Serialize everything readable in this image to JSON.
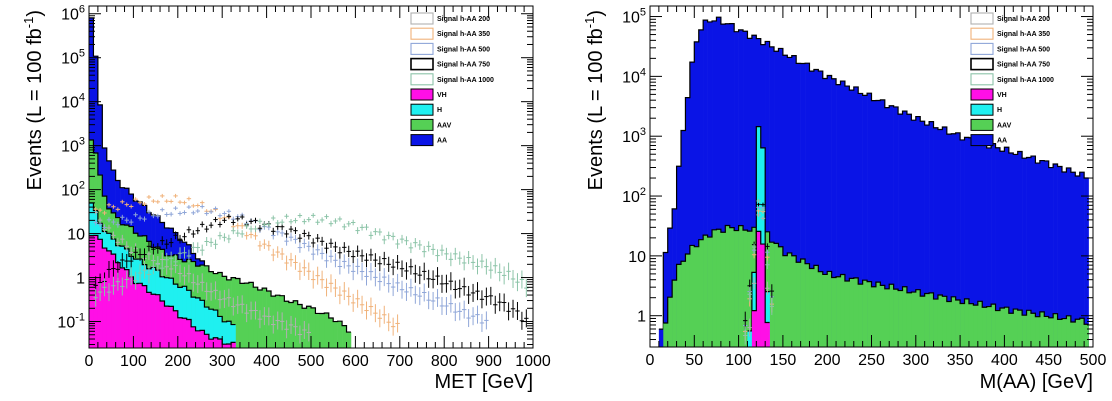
{
  "colors": {
    "AA": "#0a14e6",
    "AAV": "#55d055",
    "H": "#1ff0f0",
    "VH": "#ff0fe6",
    "sig200": "#b0b0b0",
    "sig350": "#f0b27a",
    "sig500": "#8fa6d8",
    "sig750": "#000000",
    "sig1000": "#8cc4a8"
  },
  "chart_data": [
    {
      "type": "histogram",
      "stacked_backgrounds": true,
      "xlabel": "MET [GeV]",
      "ylabel": "Events (L = 100 fb",
      "ylabel_sup": "-1",
      "ylabel_tail": ")",
      "xlim": [
        0,
        1000
      ],
      "ylim": [
        0.025,
        1500000
      ],
      "log_y": true,
      "bin_width": 10,
      "x_ticks": [
        "0",
        "100",
        "200",
        "300",
        "400",
        "500",
        "600",
        "700",
        "800",
        "900",
        "1000"
      ],
      "y_ticks": [
        {
          "base": "10",
          "exp": "-1"
        },
        {
          "base": "1",
          "exp": ""
        },
        {
          "base": "10",
          "exp": ""
        },
        {
          "base": "10",
          "exp": "2"
        },
        {
          "base": "10",
          "exp": "3"
        },
        {
          "base": "10",
          "exp": "4"
        },
        {
          "base": "10",
          "exp": "5"
        },
        {
          "base": "10",
          "exp": "6"
        }
      ],
      "legend_position": "top-right",
      "legend": [
        {
          "label": "Signal h-AA 200",
          "style": "line",
          "color_key": "sig200"
        },
        {
          "label": "Signal h-AA 350",
          "style": "line",
          "color_key": "sig350"
        },
        {
          "label": "Signal h-AA 500",
          "style": "line",
          "color_key": "sig500"
        },
        {
          "label": "Signal h-AA 750",
          "style": "line",
          "color_key": "sig750"
        },
        {
          "label": "Signal h-AA 1000",
          "style": "line",
          "color_key": "sig1000"
        },
        {
          "label": "VH",
          "style": "fill",
          "color_key": "VH"
        },
        {
          "label": "H",
          "style": "fill",
          "color_key": "H"
        },
        {
          "label": "AAV",
          "style": "fill",
          "color_key": "AAV"
        },
        {
          "label": "AA",
          "style": "fill",
          "color_key": "AA"
        }
      ],
      "stack_totals": {
        "VH": {
          "x": [
            5,
            25,
            50,
            75,
            100,
            125,
            150,
            175,
            200,
            225,
            250,
            275,
            300,
            325
          ],
          "y": [
            10,
            7,
            3.5,
            1.8,
            0.9,
            0.6,
            0.4,
            0.25,
            0.15,
            0.1,
            0.06,
            0.045,
            0.035,
            0.03
          ]
        },
        "H": {
          "x": [
            5,
            15,
            30,
            50,
            75,
            100,
            125,
            150,
            175,
            200,
            225,
            250,
            275,
            300,
            325
          ],
          "y": [
            50,
            30,
            14,
            8,
            5,
            3,
            2,
            1.5,
            1,
            0.7,
            0.5,
            0.3,
            0.2,
            0.12,
            0.08
          ]
        },
        "AAV": {
          "x": [
            5,
            15,
            30,
            50,
            75,
            100,
            125,
            150,
            175,
            200,
            250,
            300,
            350,
            400,
            450,
            500,
            550,
            590
          ],
          "y": [
            1500,
            700,
            100,
            30,
            18,
            12,
            8,
            5,
            3.5,
            2.8,
            2,
            1.1,
            0.8,
            0.5,
            0.3,
            0.2,
            0.12,
            0.06
          ]
        },
        "AA": {
          "x": [
            5,
            15,
            25,
            35,
            50,
            75,
            100,
            125,
            150,
            175,
            200,
            225,
            250,
            275,
            300
          ],
          "y": [
            900000,
            100000,
            8000,
            1000,
            300,
            120,
            70,
            40,
            25,
            15,
            9,
            5,
            2.5,
            1.2,
            0.6
          ]
        }
      },
      "signals": [
        {
          "key": "sig200",
          "x": [
            10,
            50,
            100,
            150,
            200,
            250,
            300,
            350,
            400,
            450,
            500
          ],
          "y": [
            30,
            10,
            4,
            2.5,
            1.5,
            0.7,
            0.35,
            0.2,
            0.12,
            0.08,
            0.05
          ]
        },
        {
          "key": "sig350",
          "x": [
            10,
            50,
            100,
            150,
            200,
            250,
            300,
            350,
            400,
            450,
            500,
            550,
            600,
            650,
            700
          ],
          "y": [
            30,
            40,
            50,
            60,
            60,
            45,
            25,
            12,
            5,
            2.5,
            1.2,
            0.6,
            0.3,
            0.15,
            0.07
          ]
        },
        {
          "key": "sig500",
          "x": [
            10,
            50,
            100,
            150,
            200,
            250,
            300,
            350,
            400,
            450,
            500,
            550,
            600,
            650,
            700,
            750,
            800,
            850,
            900
          ],
          "y": [
            15,
            18,
            22,
            28,
            32,
            35,
            30,
            22,
            13,
            8,
            4.5,
            2.5,
            1.6,
            1,
            0.6,
            0.4,
            0.25,
            0.15,
            0.1
          ]
        },
        {
          "key": "sig750",
          "x": [
            10,
            50,
            100,
            150,
            200,
            250,
            300,
            330,
            350,
            400,
            450,
            500,
            550,
            600,
            650,
            700,
            750,
            800,
            850,
            900,
            950,
            990
          ],
          "y": [
            0.5,
            1.5,
            3,
            5,
            8,
            13,
            20,
            22,
            20,
            15,
            12,
            8,
            5,
            3.5,
            2.5,
            1.8,
            1.2,
            0.8,
            0.5,
            0.35,
            0.2,
            0.1
          ]
        },
        {
          "key": "sig1000",
          "x": [
            10,
            100,
            200,
            300,
            400,
            450,
            500,
            550,
            600,
            650,
            700,
            750,
            800,
            850,
            900,
            950,
            990
          ],
          "y": [
            0.4,
            1,
            3,
            8,
            18,
            21,
            22,
            20,
            15,
            10,
            7,
            5,
            3.5,
            2.5,
            1.8,
            1.1,
            0.6
          ]
        }
      ]
    },
    {
      "type": "histogram",
      "stacked_backgrounds": true,
      "xlabel": "M(AA) [GeV]",
      "ylabel": "Events (L = 100 fb",
      "ylabel_sup": "-1",
      "ylabel_tail": ")",
      "xlim": [
        0,
        500
      ],
      "ylim": [
        0.3,
        150000
      ],
      "log_y": true,
      "bin_width": 5,
      "x_ticks": [
        "0",
        "50",
        "100",
        "150",
        "200",
        "250",
        "300",
        "350",
        "400",
        "450",
        "500"
      ],
      "y_ticks": [
        {
          "base": "1",
          "exp": ""
        },
        {
          "base": "10",
          "exp": ""
        },
        {
          "base": "10",
          "exp": "2"
        },
        {
          "base": "10",
          "exp": "3"
        },
        {
          "base": "10",
          "exp": "4"
        },
        {
          "base": "10",
          "exp": "5"
        }
      ],
      "legend_position": "top-right",
      "legend": [
        {
          "label": "Signal h-AA 200",
          "style": "line",
          "color_key": "sig200"
        },
        {
          "label": "Signal h-AA 350",
          "style": "line",
          "color_key": "sig350"
        },
        {
          "label": "Signal h-AA 500",
          "style": "line",
          "color_key": "sig500"
        },
        {
          "label": "Signal h-AA 750",
          "style": "line",
          "color_key": "sig750"
        },
        {
          "label": "Signal h-AA 1000",
          "style": "line",
          "color_key": "sig1000"
        },
        {
          "label": "VH",
          "style": "fill",
          "color_key": "VH"
        },
        {
          "label": "H",
          "style": "fill",
          "color_key": "H"
        },
        {
          "label": "AAV",
          "style": "fill",
          "color_key": "AAV"
        },
        {
          "label": "AA",
          "style": "fill",
          "color_key": "AA"
        }
      ],
      "stack_totals": {
        "VH": {
          "x": [
            112,
            117,
            122,
            127,
            132,
            137
          ],
          "y": [
            0.2,
            0.8,
            25,
            25,
            0.8,
            0.2
          ]
        },
        "H": {
          "x": [
            112,
            117,
            122,
            127,
            132,
            137
          ],
          "y": [
            0.5,
            3,
            1300,
            1300,
            3,
            0.5
          ]
        },
        "AAV": {
          "x": [
            12,
            17,
            22,
            27,
            35,
            50,
            70,
            90,
            110,
            130,
            150,
            200,
            250,
            300,
            350,
            400,
            450,
            497
          ],
          "y": [
            0.1,
            0.6,
            2,
            4,
            8,
            15,
            25,
            30,
            28,
            25,
            12,
            5,
            3.5,
            2.5,
            1.8,
            1.3,
            1,
            0.8
          ]
        },
        "AA": {
          "x": [
            12,
            17,
            22,
            27,
            35,
            45,
            55,
            65,
            75,
            85,
            100,
            125,
            150,
            200,
            250,
            300,
            350,
            400,
            450,
            497
          ],
          "y": [
            0.5,
            10,
            25,
            60,
            600,
            10000,
            60000,
            85000,
            90000,
            80000,
            60000,
            40000,
            25000,
            10000,
            4500,
            2000,
            1000,
            600,
            350,
            200
          ]
        }
      },
      "signals": [
        {
          "key": "sig200",
          "x": [
            112,
            117,
            122,
            127,
            132,
            137
          ],
          "y": [
            0.5,
            3,
            60,
            60,
            3,
            0.5
          ]
        },
        {
          "key": "sig350",
          "x": [
            107,
            112,
            117,
            122,
            127,
            132,
            137,
            142
          ],
          "y": [
            0.4,
            1.5,
            10,
            70,
            70,
            10,
            1.5,
            0.4
          ]
        },
        {
          "key": "sig500",
          "x": [
            107,
            112,
            117,
            122,
            127,
            132,
            137,
            142
          ],
          "y": [
            0.5,
            2,
            12,
            80,
            80,
            12,
            2,
            0.5
          ]
        },
        {
          "key": "sig750",
          "x": [
            107,
            112,
            117,
            122,
            127,
            132,
            137,
            142
          ],
          "y": [
            0.6,
            2.5,
            15,
            90,
            90,
            15,
            2.5,
            0.6
          ]
        },
        {
          "key": "sig1000",
          "x": [
            107,
            112,
            117,
            122,
            127,
            132,
            137,
            142
          ],
          "y": [
            0.5,
            2,
            10,
            70,
            70,
            10,
            2,
            0.5
          ]
        }
      ]
    }
  ]
}
